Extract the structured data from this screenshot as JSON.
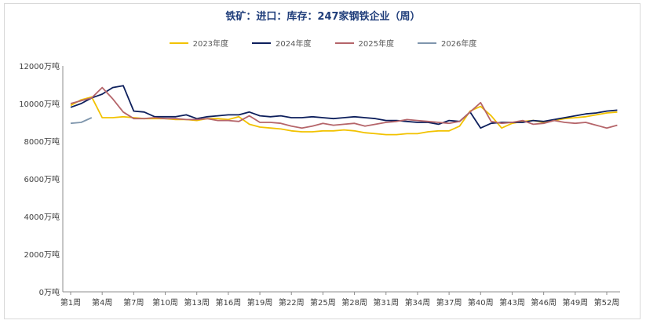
{
  "chart_data": {
    "type": "line",
    "title": "铁矿：进口：库存：247家钢铁企业（周）",
    "ylabel": "",
    "xlabel": "",
    "ylim": [
      0,
      12000
    ],
    "y_ticks": [
      "0万吨",
      "2000万吨",
      "4000万吨",
      "6000万吨",
      "8000万吨",
      "10000万吨",
      "12000万吨"
    ],
    "y_tick_values": [
      0,
      2000,
      4000,
      6000,
      8000,
      10000,
      12000
    ],
    "x_ticks": [
      "第1周",
      "第4周",
      "第7周",
      "第10周",
      "第13周",
      "第16周",
      "第19周",
      "第22周",
      "第25周",
      "第28周",
      "第31周",
      "第34周",
      "第37周",
      "第40周",
      "第43周",
      "第46周",
      "第49周",
      "第52周"
    ],
    "x_tick_weeks": [
      1,
      4,
      7,
      10,
      13,
      16,
      19,
      22,
      25,
      28,
      31,
      34,
      37,
      40,
      43,
      46,
      49,
      52
    ],
    "legend_position": "top",
    "grid": false,
    "series": [
      {
        "name": "2023年度",
        "color": "#f2c200",
        "values": [
          9900,
          10200,
          10350,
          9250,
          9250,
          9300,
          9250,
          9200,
          9200,
          9200,
          9150,
          9150,
          9100,
          9200,
          9200,
          9150,
          9300,
          8900,
          8750,
          8700,
          8650,
          8550,
          8500,
          8500,
          8550,
          8550,
          8600,
          8550,
          8450,
          8400,
          8350,
          8350,
          8400,
          8400,
          8500,
          8550,
          8550,
          8800,
          9600,
          9850,
          9350,
          8700,
          8950,
          9050,
          9100,
          9000,
          9100,
          9200,
          9250,
          9300,
          9400,
          9500,
          9550
        ]
      },
      {
        "name": "2024年度",
        "color": "#0d1f5c",
        "values": [
          9800,
          10000,
          10300,
          10500,
          10850,
          10950,
          9600,
          9550,
          9300,
          9300,
          9300,
          9400,
          9200,
          9300,
          9350,
          9400,
          9400,
          9550,
          9350,
          9300,
          9350,
          9250,
          9250,
          9300,
          9250,
          9200,
          9250,
          9300,
          9250,
          9200,
          9100,
          9100,
          9050,
          9000,
          9000,
          8900,
          9100,
          9050,
          9550,
          8700,
          8950,
          9000,
          9000,
          9000,
          9100,
          9050,
          9150,
          9250,
          9350,
          9450,
          9500,
          9600,
          9650
        ]
      },
      {
        "name": "2025年度",
        "color": "#b5656a",
        "values": [
          10000,
          10150,
          10300,
          10850,
          10250,
          9550,
          9200,
          9200,
          9250,
          9200,
          9200,
          9150,
          9150,
          9200,
          9100,
          9100,
          9050,
          9350,
          9000,
          9000,
          8950,
          8800,
          8700,
          8800,
          8950,
          8850,
          8900,
          8950,
          8800,
          8900,
          9000,
          9050,
          9150,
          9100,
          9050,
          9000,
          8950,
          9050,
          9550,
          10050,
          9050,
          8950,
          9000,
          9100,
          8900,
          8950,
          9100,
          9000,
          8950,
          9000,
          8850,
          8700,
          8850
        ]
      },
      {
        "name": "2026年度",
        "color": "#7f96ad",
        "values": [
          8950,
          9000,
          9250
        ]
      }
    ]
  }
}
